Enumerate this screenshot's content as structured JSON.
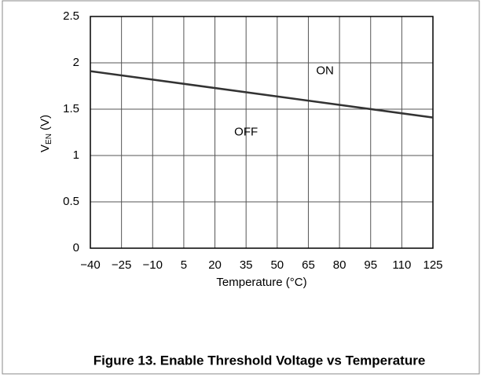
{
  "chart_data": {
    "type": "line",
    "title": "Figure 13. Enable Threshold Voltage vs Temperature",
    "xlabel": "Temperature (°C)",
    "ylabel": {
      "main": "V",
      "sub": "EN",
      "unit": "(V)"
    },
    "x": [
      -40,
      125
    ],
    "series": [
      {
        "color": "#333333",
        "values": [
          1.91,
          1.41
        ]
      }
    ],
    "xlim": [
      -40,
      125
    ],
    "xticks": [
      {
        "value": -40,
        "label": "−40"
      },
      {
        "value": -25,
        "label": "−25"
      },
      {
        "value": -10,
        "label": "−10"
      },
      5,
      20,
      35,
      50,
      65,
      80,
      95,
      110,
      125
    ],
    "ylim": [
      0,
      2.5
    ],
    "yticks": [
      0,
      0.5,
      1,
      1.5,
      2,
      2.5
    ],
    "grid": true,
    "annotations": [
      {
        "text": "ON",
        "x": 73,
        "y": 1.91
      },
      {
        "text": "OFF",
        "x": 35,
        "y": 1.25
      }
    ]
  }
}
